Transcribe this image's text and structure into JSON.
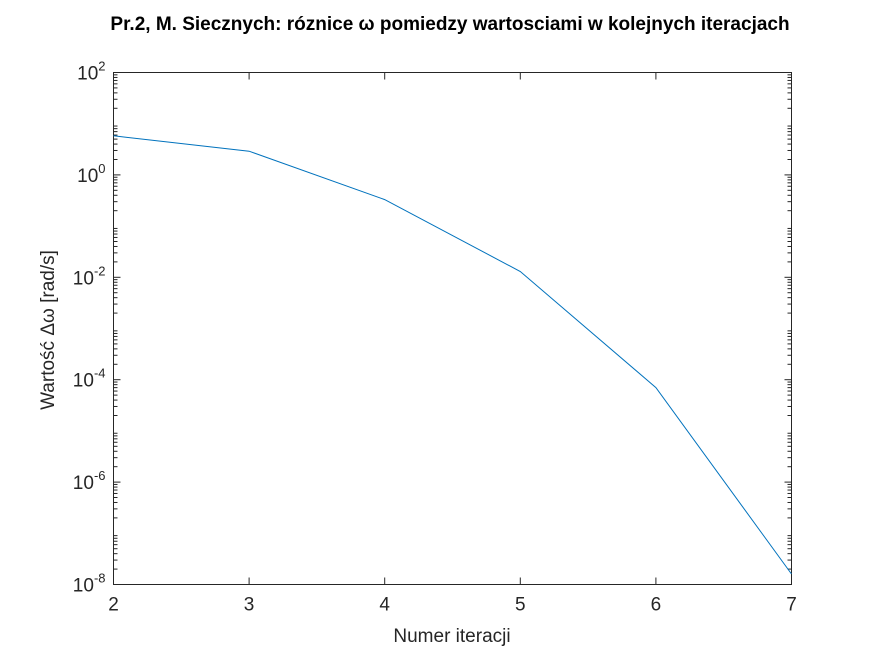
{
  "chart_data": {
    "type": "line",
    "title": "Pr.2, M. Siecznych: róznice ω pomiedzy wartosciami w kolejnych iteracjach",
    "xlabel": "Numer iteracji",
    "ylabel": "Wartość Δω [rad/s]",
    "yscale": "log",
    "xlim": [
      2,
      7
    ],
    "ylim": [
      1e-08,
      100
    ],
    "x_ticks": [
      2,
      3,
      4,
      5,
      6,
      7
    ],
    "y_ticks": [
      {
        "base": "10",
        "exp": "-8",
        "value": 1e-08
      },
      {
        "base": "10",
        "exp": "-6",
        "value": 1e-06
      },
      {
        "base": "10",
        "exp": "-4",
        "value": 0.0001
      },
      {
        "base": "10",
        "exp": "-2",
        "value": 0.01
      },
      {
        "base": "10",
        "exp": "0",
        "value": 1
      },
      {
        "base": "10",
        "exp": "2",
        "value": 100
      }
    ],
    "grid": false,
    "legend": "none",
    "series": [
      {
        "color": "#0072BD",
        "x": [
          2,
          3,
          4,
          5,
          6,
          7
        ],
        "y": [
          5.8,
          2.9,
          0.33,
          0.013,
          7e-05,
          1.6e-08
        ]
      }
    ]
  }
}
